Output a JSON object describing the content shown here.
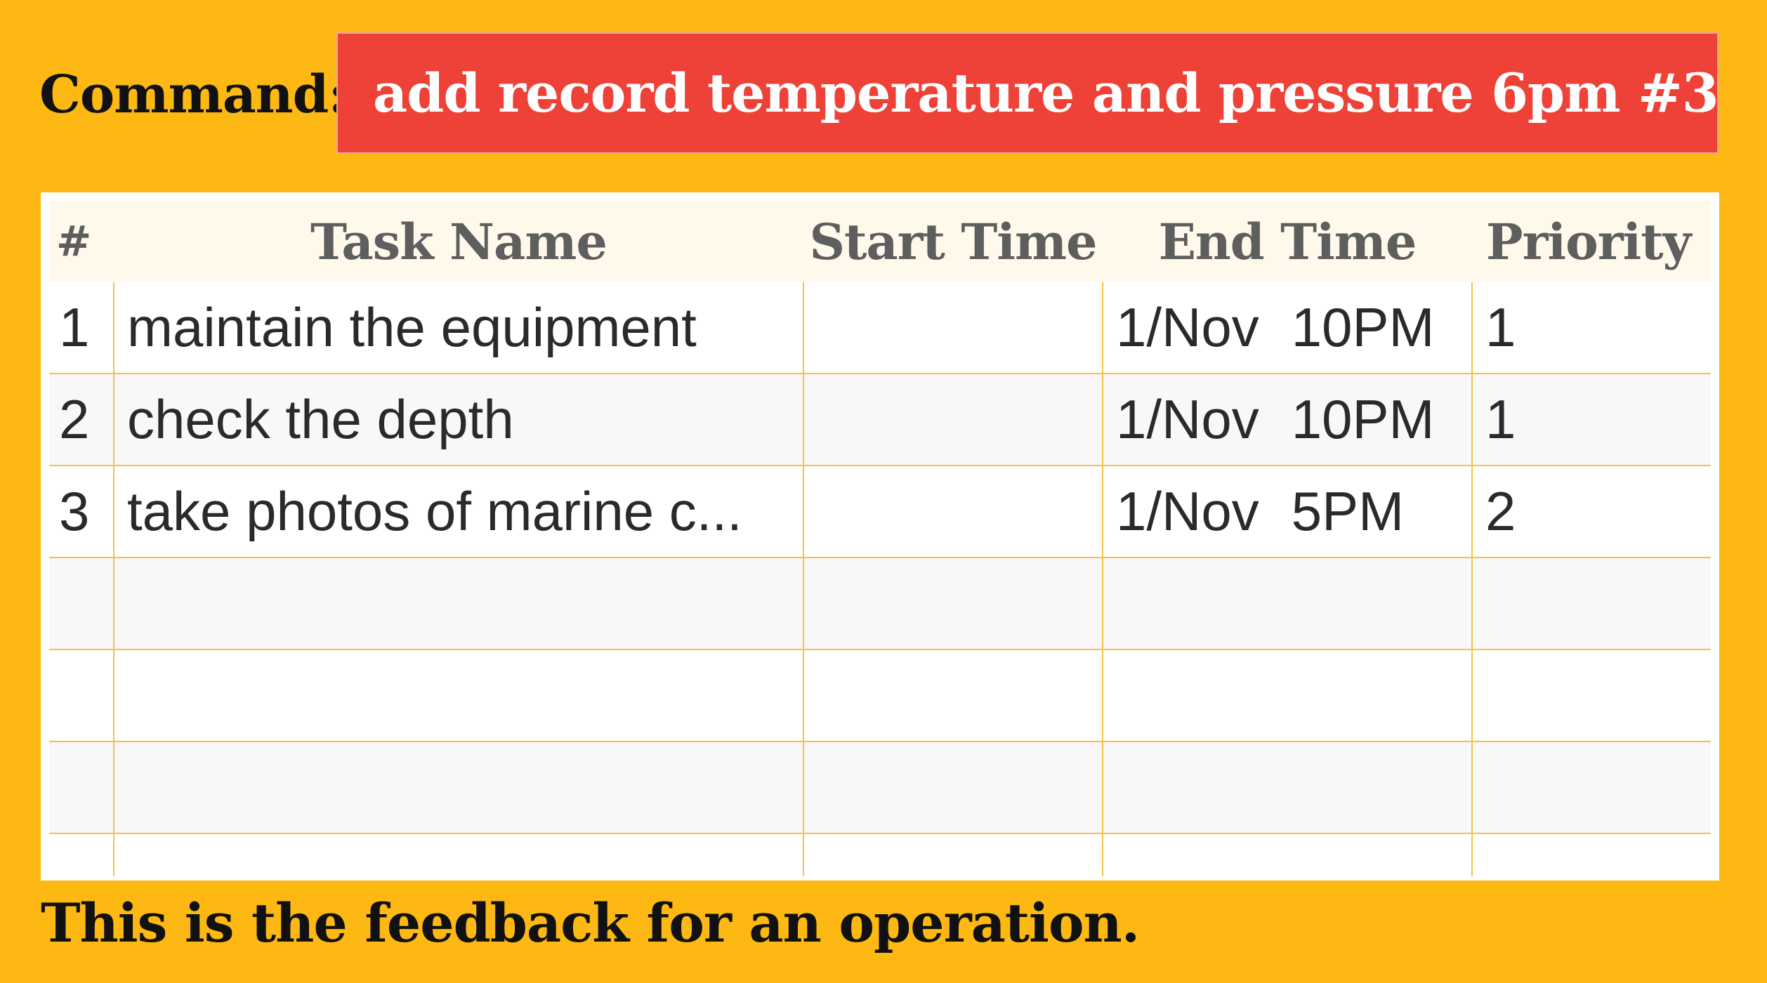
{
  "command": {
    "label": "Command:",
    "value": "add record temperature and pressure 6pm #3"
  },
  "table": {
    "headers": [
      "#",
      "Task Name",
      "Start Time",
      "End Time",
      "Priority"
    ],
    "rows": [
      {
        "num": "1",
        "name": "maintain the equipment",
        "start": "",
        "end_date": "1/Nov",
        "end_time": "10PM",
        "priority": "1"
      },
      {
        "num": "2",
        "name": "check the depth",
        "start": "",
        "end_date": "1/Nov",
        "end_time": "10PM",
        "priority": "1"
      },
      {
        "num": "3",
        "name": "take photos of marine c...",
        "start": "",
        "end_date": "1/Nov",
        "end_time": "5PM",
        "priority": "2"
      }
    ]
  },
  "feedback": "This is the feedback for an operation.",
  "colors": {
    "background": "#FDB813",
    "command_input": "#EE4238",
    "header_row": "#FFF9EC",
    "grid_line": "#F2C24A"
  }
}
